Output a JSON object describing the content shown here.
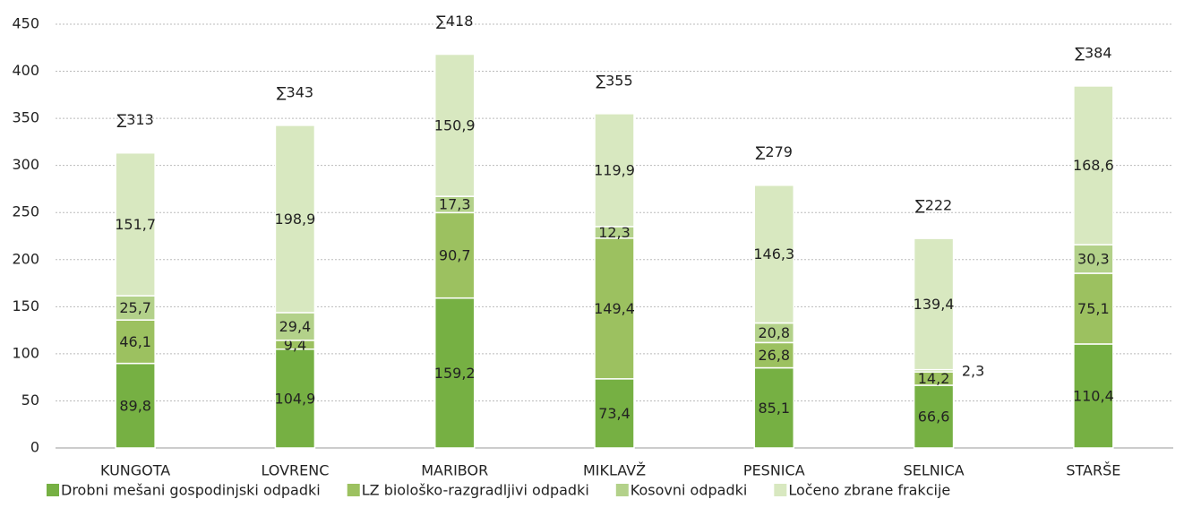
{
  "chart_data": {
    "type": "stacked_bar",
    "categories": [
      "KUNGOTA",
      "LOVRENC",
      "MARIBOR",
      "MIKLAVŽ",
      "PESNICA",
      "SELNICA",
      "STARŠE"
    ],
    "series": [
      {
        "name": "Drobni mešani gospodinjski odpadki",
        "color": "#76b043",
        "values": [
          89.8,
          104.9,
          159.2,
          73.4,
          85.1,
          66.6,
          110.4
        ],
        "value_labels": [
          "89,8",
          "104,9",
          "159,2",
          "73,4",
          "85,1",
          "66,6",
          "110,4"
        ]
      },
      {
        "name": "LZ biološko-razgradljivi odpadki",
        "color": "#9cc160",
        "values": [
          46.1,
          9.4,
          90.7,
          149.4,
          26.8,
          14.2,
          75.1
        ],
        "value_labels": [
          "46,1",
          "9,4",
          "90,7",
          "149,4",
          "26,8",
          "14,2",
          "75,1"
        ]
      },
      {
        "name": "Kosovni odpadki",
        "color": "#b3d18a",
        "values": [
          25.7,
          29.4,
          17.3,
          12.3,
          20.8,
          2.3,
          30.3
        ],
        "value_labels": [
          "25,7",
          "29,4",
          "17,3",
          "12,3",
          "20,8",
          "2,3",
          "30,3"
        ]
      },
      {
        "name": "Ločeno zbrane frakcije",
        "color": "#d8e8c0",
        "values": [
          151.7,
          198.9,
          150.9,
          119.9,
          146.3,
          139.4,
          168.6
        ],
        "value_labels": [
          "151,7",
          "198,9",
          "150,9",
          "119,9",
          "146,3",
          "139,4",
          "168,6"
        ]
      }
    ],
    "total_labels": [
      "∑313",
      "∑343",
      "∑418",
      "∑355",
      "∑279",
      "∑222",
      "∑384"
    ],
    "ylim": [
      0,
      450
    ],
    "yticks": [
      0,
      50,
      100,
      150,
      200,
      250,
      300,
      350,
      400,
      450
    ],
    "grid": true
  }
}
